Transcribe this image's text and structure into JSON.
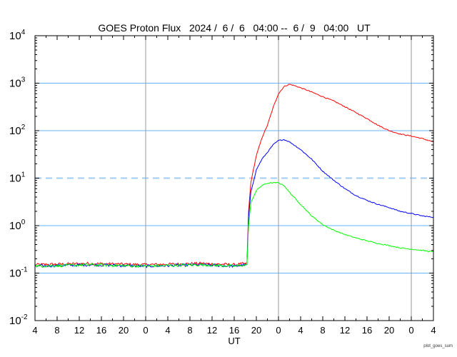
{
  "chart_data": {
    "type": "line",
    "title": "GOES Proton Flux   2024 /  6 /  6   04:00 --  6 /  9   04:00   UT",
    "xlabel": "UT",
    "x_unit": "hours since 2024-06-06 04:00 UT",
    "x_range": [
      0,
      72
    ],
    "x_tick_labels": [
      "4",
      "8",
      "12",
      "16",
      "20",
      "0",
      "4",
      "8",
      "12",
      "16",
      "20",
      "0",
      "4",
      "8",
      "12",
      "16",
      "20",
      "0",
      "4"
    ],
    "day_boundaries_hours": [
      20,
      44,
      68
    ],
    "y_scale": "log",
    "ylim": [
      0.01,
      10000
    ],
    "y_tick_labels": [
      {
        "base": "10",
        "exp": "-2"
      },
      {
        "base": "10",
        "exp": "-1"
      },
      {
        "base": "10",
        "exp": "0"
      },
      {
        "base": "10",
        "exp": "1"
      },
      {
        "base": "10",
        "exp": "2"
      },
      {
        "base": "10",
        "exp": "3"
      },
      {
        "base": "10",
        "exp": "4"
      }
    ],
    "threshold": {
      "value": 10,
      "style": "dashed"
    },
    "colors": {
      "series_red": "#ff0000",
      "series_blue": "#0000ff",
      "series_green": "#00ff00",
      "grid": "#66b3ff",
      "day_line": "#999999",
      "threshold": "#9fcdf5"
    },
    "series": [
      {
        "color": "#ff0000",
        "points": [
          [
            0,
            0.15
          ],
          [
            10,
            0.16
          ],
          [
            20,
            0.15
          ],
          [
            30,
            0.16
          ],
          [
            36,
            0.15
          ],
          [
            38.3,
            0.16
          ],
          [
            38.6,
            2
          ],
          [
            39,
            8
          ],
          [
            40,
            30
          ],
          [
            41,
            70
          ],
          [
            42,
            130
          ],
          [
            43,
            300
          ],
          [
            44,
            600
          ],
          [
            45,
            850
          ],
          [
            46,
            950
          ],
          [
            47,
            880
          ],
          [
            48,
            800
          ],
          [
            50,
            650
          ],
          [
            52,
            520
          ],
          [
            54,
            420
          ],
          [
            56,
            320
          ],
          [
            58,
            240
          ],
          [
            60,
            180
          ],
          [
            62,
            130
          ],
          [
            64,
            100
          ],
          [
            66,
            85
          ],
          [
            68,
            77
          ],
          [
            70,
            68
          ],
          [
            72,
            58
          ]
        ]
      },
      {
        "color": "#0000ff",
        "points": [
          [
            0,
            0.14
          ],
          [
            10,
            0.15
          ],
          [
            20,
            0.14
          ],
          [
            30,
            0.15
          ],
          [
            36,
            0.14
          ],
          [
            38.3,
            0.15
          ],
          [
            38.6,
            1.5
          ],
          [
            39,
            5
          ],
          [
            40,
            15
          ],
          [
            41,
            25
          ],
          [
            42,
            35
          ],
          [
            43,
            50
          ],
          [
            44,
            62
          ],
          [
            45,
            65
          ],
          [
            46,
            58
          ],
          [
            48,
            40
          ],
          [
            50,
            25
          ],
          [
            52,
            14
          ],
          [
            54,
            9
          ],
          [
            56,
            6
          ],
          [
            58,
            4.3
          ],
          [
            60,
            3.4
          ],
          [
            62,
            2.8
          ],
          [
            64,
            2.4
          ],
          [
            66,
            2
          ],
          [
            68,
            1.8
          ],
          [
            70,
            1.6
          ],
          [
            72,
            1.5
          ]
        ]
      },
      {
        "color": "#00ff00",
        "points": [
          [
            0,
            0.14
          ],
          [
            10,
            0.15
          ],
          [
            20,
            0.14
          ],
          [
            30,
            0.15
          ],
          [
            36,
            0.14
          ],
          [
            38.3,
            0.15
          ],
          [
            38.6,
            1
          ],
          [
            39,
            3
          ],
          [
            40,
            5.5
          ],
          [
            41,
            7
          ],
          [
            42,
            7.8
          ],
          [
            43,
            8
          ],
          [
            44,
            8
          ],
          [
            45,
            7
          ],
          [
            46,
            5
          ],
          [
            48,
            2.8
          ],
          [
            50,
            1.6
          ],
          [
            52,
            1.05
          ],
          [
            54,
            0.8
          ],
          [
            56,
            0.65
          ],
          [
            58,
            0.55
          ],
          [
            60,
            0.48
          ],
          [
            62,
            0.42
          ],
          [
            64,
            0.38
          ],
          [
            66,
            0.34
          ],
          [
            68,
            0.32
          ],
          [
            70,
            0.3
          ],
          [
            72,
            0.28
          ]
        ]
      }
    ]
  },
  "credit": "plot_goes_sum"
}
